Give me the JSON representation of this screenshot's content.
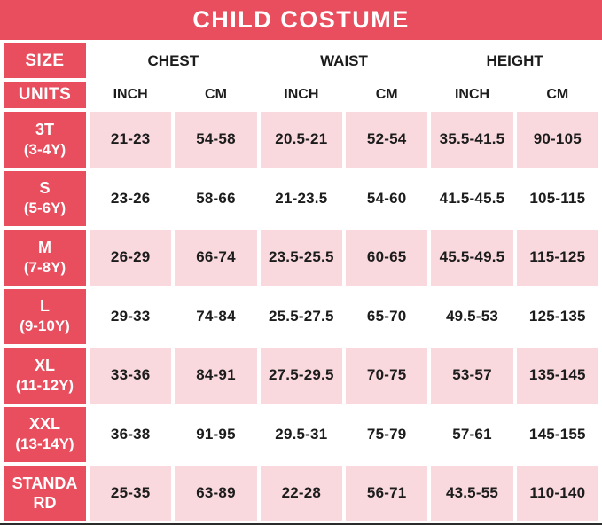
{
  "title": "CHILD COSTUME",
  "colors": {
    "accent_red": "#e84e5e",
    "row_pink": "#f9d9de",
    "text_dark": "#1c1c1c",
    "bottom_line": "#2c2c2c"
  },
  "header": {
    "size_label": "SIZE",
    "units_label": "UNITS",
    "groups": [
      "CHEST",
      "WAIST",
      "HEIGHT"
    ],
    "units": [
      "INCH",
      "CM",
      "INCH",
      "CM",
      "INCH",
      "CM"
    ]
  },
  "rows": [
    {
      "size": "3T",
      "age": "(3-4Y)",
      "values": [
        "21-23",
        "54-58",
        "20.5-21",
        "52-54",
        "35.5-41.5",
        "90-105"
      ]
    },
    {
      "size": "S",
      "age": "(5-6Y)",
      "values": [
        "23-26",
        "58-66",
        "21-23.5",
        "54-60",
        "41.5-45.5",
        "105-115"
      ]
    },
    {
      "size": "M",
      "age": "(7-8Y)",
      "values": [
        "26-29",
        "66-74",
        "23.5-25.5",
        "60-65",
        "45.5-49.5",
        "115-125"
      ]
    },
    {
      "size": "L",
      "age": "(9-10Y)",
      "values": [
        "29-33",
        "74-84",
        "25.5-27.5",
        "65-70",
        "49.5-53",
        "125-135"
      ]
    },
    {
      "size": "XL",
      "age": "(11-12Y)",
      "values": [
        "33-36",
        "84-91",
        "27.5-29.5",
        "70-75",
        "53-57",
        "135-145"
      ]
    },
    {
      "size": "XXL",
      "age": "(13-14Y)",
      "values": [
        "36-38",
        "91-95",
        "29.5-31",
        "75-79",
        "57-61",
        "145-155"
      ]
    },
    {
      "size": "STANDARD",
      "age": "",
      "values": [
        "25-35",
        "63-89",
        "22-28",
        "56-71",
        "43.5-55",
        "110-140"
      ]
    }
  ],
  "chart_data": {
    "type": "table",
    "title": "CHILD COSTUME",
    "columns": [
      "SIZE",
      "CHEST INCH",
      "CHEST CM",
      "WAIST INCH",
      "WAIST CM",
      "HEIGHT INCH",
      "HEIGHT CM"
    ],
    "rows": [
      [
        "3T (3-4Y)",
        "21-23",
        "54-58",
        "20.5-21",
        "52-54",
        "35.5-41.5",
        "90-105"
      ],
      [
        "S (5-6Y)",
        "23-26",
        "58-66",
        "21-23.5",
        "54-60",
        "41.5-45.5",
        "105-115"
      ],
      [
        "M (7-8Y)",
        "26-29",
        "66-74",
        "23.5-25.5",
        "60-65",
        "45.5-49.5",
        "115-125"
      ],
      [
        "L (9-10Y)",
        "29-33",
        "74-84",
        "25.5-27.5",
        "65-70",
        "49.5-53",
        "125-135"
      ],
      [
        "XL (11-12Y)",
        "33-36",
        "84-91",
        "27.5-29.5",
        "70-75",
        "53-57",
        "135-145"
      ],
      [
        "XXL (13-14Y)",
        "36-38",
        "91-95",
        "29.5-31",
        "75-79",
        "57-61",
        "145-155"
      ],
      [
        "STANDARD",
        "25-35",
        "63-89",
        "22-28",
        "56-71",
        "43.5-55",
        "110-140"
      ]
    ]
  }
}
